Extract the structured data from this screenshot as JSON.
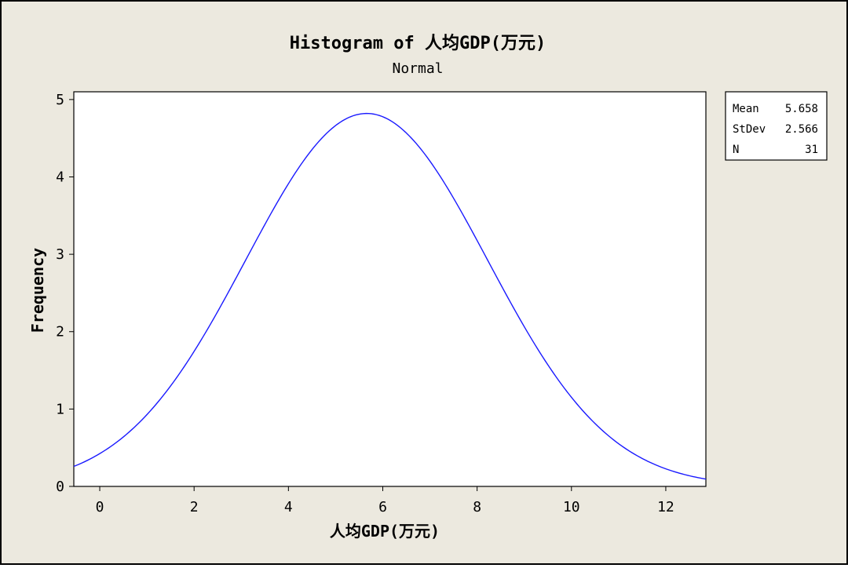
{
  "colors": {
    "background": "#ece9df",
    "plot_background": "#ffffff",
    "curve": "#1a1aff",
    "axis": "#000000"
  },
  "chart_data": {
    "type": "line",
    "title": "Histogram of 人均GDP(万元)",
    "subtitle": "Normal",
    "xlabel": "人均GDP(万元)",
    "ylabel": "Frequency",
    "xlim": [
      -0.55,
      12.85
    ],
    "ylim": [
      0,
      5.1
    ],
    "xticks": [
      0,
      2,
      4,
      6,
      8,
      10,
      12
    ],
    "yticks": [
      0,
      1,
      2,
      3,
      4,
      5
    ],
    "grid": false,
    "distribution": "normal",
    "fitted_peak_frequency": 4.82,
    "stats": {
      "mean": 5.658,
      "stdev": 2.566,
      "n": 31
    },
    "stats_box": [
      {
        "label": "Mean",
        "value": "5.658"
      },
      {
        "label": "StDev",
        "value": "2.566"
      },
      {
        "label": "N",
        "value": "31"
      }
    ],
    "legend_position": "top-right"
  }
}
